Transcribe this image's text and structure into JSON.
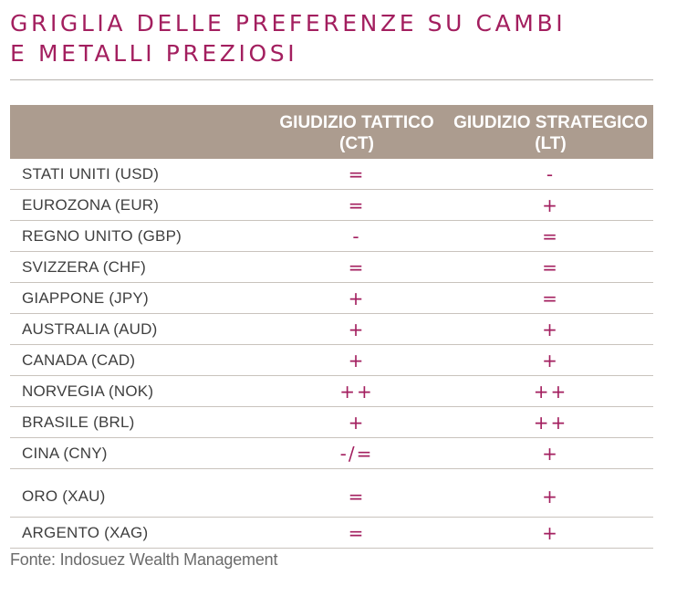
{
  "title": {
    "line1": "GRIGLIA DELLE PREFERENZE SU CAMBI",
    "line2": "E METALLI PREZIOSI"
  },
  "table": {
    "headers": {
      "name": "",
      "tactical": "GIUDIZIO TATTICO (CT)",
      "strategic": "GIUDIZIO STRATEGICO (LT)"
    },
    "rows": [
      {
        "name": "STATI UNITI (USD)",
        "ct": "=",
        "lt": "-"
      },
      {
        "name": "EUROZONA (EUR)",
        "ct": "=",
        "lt": "+"
      },
      {
        "name": "REGNO UNITO (GBP)",
        "ct": "-",
        "lt": "="
      },
      {
        "name": "SVIZZERA (CHF)",
        "ct": "=",
        "lt": "="
      },
      {
        "name": "GIAPPONE (JPY)",
        "ct": "+",
        "lt": "="
      },
      {
        "name": "AUSTRALIA (AUD)",
        "ct": "+",
        "lt": "+"
      },
      {
        "name": "CANADA (CAD)",
        "ct": "+",
        "lt": "+"
      },
      {
        "name": "NORVEGIA (NOK)",
        "ct": "++",
        "lt": "++"
      },
      {
        "name": "BRASILE (BRL)",
        "ct": "+",
        "lt": "++"
      },
      {
        "name": "CINA (CNY)",
        "ct": "-/=",
        "lt": "+"
      },
      {
        "name": "ORO (XAU)",
        "ct": "=",
        "lt": "+"
      },
      {
        "name": "ARGENTO (XAG)",
        "ct": "=",
        "lt": "+"
      }
    ]
  },
  "source": "Fonte: Indosuez Wealth Management",
  "colors": {
    "title": "#a31f5f",
    "header_bg": "#ac9c8f",
    "header_text": "#ffffff",
    "rating": "#a31f5f",
    "row_text": "#3f3f3f",
    "divider": "#c9c3bd"
  }
}
